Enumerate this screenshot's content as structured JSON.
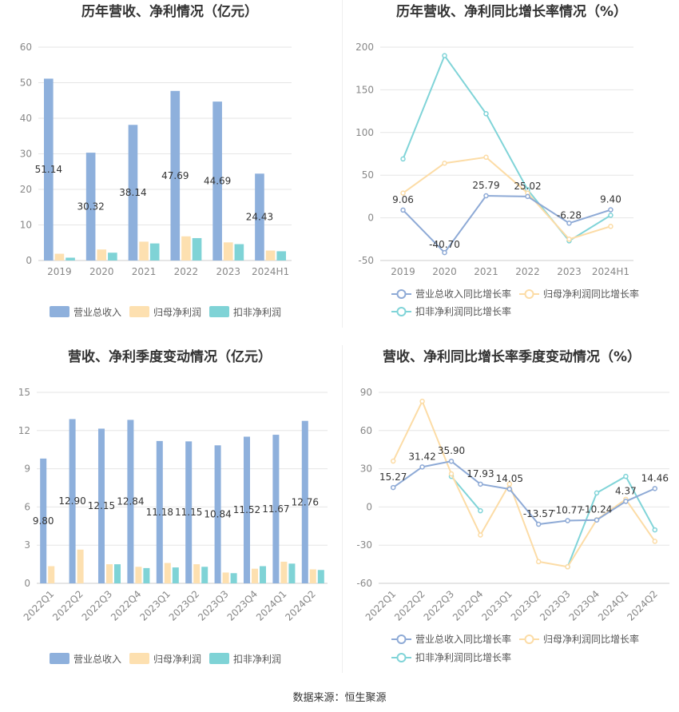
{
  "footer": {
    "label": "数据来源：",
    "value": "恒生聚源"
  },
  "colors": {
    "revenue": "#8eb0dc",
    "net_profit": "#fde0b0",
    "deducted_profit": "#7fd3d6",
    "revenue_line": "#8eaad6",
    "net_line": "#fcdca6",
    "deducted_line": "#80d4d8"
  },
  "chart_data": [
    {
      "type": "bar",
      "title": "历年营收、净利情况（亿元）",
      "categories": [
        "2019",
        "2020",
        "2021",
        "2022",
        "2023",
        "2024H1"
      ],
      "ylim": [
        0,
        60
      ],
      "yticks": [
        0,
        10,
        20,
        30,
        40,
        50,
        60
      ],
      "grid": true,
      "legend": "bottom",
      "series": [
        {
          "name": "营业总收入",
          "values": [
            51.14,
            30.32,
            38.14,
            47.69,
            44.69,
            24.43
          ],
          "labels": [
            "51.14",
            "30.32",
            "38.14",
            "47.69",
            "44.69",
            "24.43"
          ]
        },
        {
          "name": "归母净利润",
          "values": [
            1.9,
            3.1,
            5.3,
            6.8,
            5.1,
            2.8
          ]
        },
        {
          "name": "扣非净利润",
          "values": [
            0.8,
            2.2,
            4.8,
            6.3,
            4.6,
            2.6
          ]
        }
      ]
    },
    {
      "type": "line",
      "title": "历年营收、净利同比增长率情况（%）",
      "categories": [
        "2019",
        "2020",
        "2021",
        "2022",
        "2023",
        "2024H1"
      ],
      "ylim": [
        -50,
        200
      ],
      "yticks": [
        -50,
        0,
        50,
        100,
        150,
        200
      ],
      "grid": true,
      "legend": "bottom",
      "series": [
        {
          "name": "营业总收入同比增长率",
          "values": [
            9.06,
            -40.7,
            25.79,
            25.02,
            -6.28,
            9.4
          ],
          "labels": [
            "9.06",
            "-40.70",
            "25.79",
            "25.02",
            "-6.28",
            "9.40"
          ]
        },
        {
          "name": "归母净利润同比增长率",
          "values": [
            29,
            64,
            71,
            29,
            -25,
            -10
          ]
        },
        {
          "name": "扣非净利润同比增长率",
          "values": [
            69,
            190,
            122,
            33,
            -27,
            3
          ]
        }
      ]
    },
    {
      "type": "bar",
      "title": "营收、净利季度变动情况（亿元）",
      "categories": [
        "2022Q1",
        "2022Q2",
        "2022Q3",
        "2022Q4",
        "2023Q1",
        "2023Q2",
        "2023Q3",
        "2023Q4",
        "2024Q1",
        "2024Q2"
      ],
      "ylim": [
        0,
        15
      ],
      "yticks": [
        0,
        3,
        6,
        9,
        12,
        15
      ],
      "grid": true,
      "legend": "bottom",
      "series": [
        {
          "name": "营业总收入",
          "values": [
            9.8,
            12.9,
            12.15,
            12.84,
            11.18,
            11.15,
            10.84,
            11.52,
            11.67,
            12.76
          ],
          "labels": [
            "9.80",
            "12.90",
            "12.15",
            "12.84",
            "11.18",
            "11.15",
            "10.84",
            "11.52",
            "11.67",
            "12.76"
          ]
        },
        {
          "name": "归母净利润",
          "values": [
            1.35,
            2.65,
            1.5,
            1.3,
            1.6,
            1.5,
            0.85,
            1.15,
            1.7,
            1.1
          ]
        },
        {
          "name": "扣非净利润",
          "values": [
            null,
            null,
            1.5,
            1.2,
            1.25,
            1.3,
            0.8,
            1.35,
            1.55,
            1.05
          ]
        }
      ]
    },
    {
      "type": "line",
      "title": "营收、净利同比增长率季度变动情况（%）",
      "categories": [
        "2022Q1",
        "2022Q2",
        "2022Q3",
        "2022Q4",
        "2023Q1",
        "2023Q2",
        "2023Q3",
        "2023Q4",
        "2024Q1",
        "2024Q2"
      ],
      "ylim": [
        -60,
        90
      ],
      "yticks": [
        -60,
        -30,
        0,
        30,
        60,
        90
      ],
      "grid": true,
      "legend": "bottom",
      "series": [
        {
          "name": "营业总收入同比增长率",
          "values": [
            15.27,
            31.42,
            35.9,
            17.93,
            14.05,
            -13.57,
            -10.77,
            -10.24,
            4.37,
            14.46
          ],
          "labels": [
            "15.27",
            "31.42",
            "35.90",
            "17.93",
            "14.05",
            "-13.57",
            "-10.77",
            "-10.24",
            "4.37",
            "14.46"
          ]
        },
        {
          "name": "归母净利润同比增长率",
          "values": [
            36,
            83,
            26,
            -22,
            18,
            -43,
            -47,
            -10,
            6,
            -27
          ]
        },
        {
          "name": "扣非净利润同比增长率",
          "values": [
            null,
            null,
            24,
            -3,
            null,
            null,
            -47,
            11,
            24,
            -18
          ]
        }
      ]
    }
  ]
}
